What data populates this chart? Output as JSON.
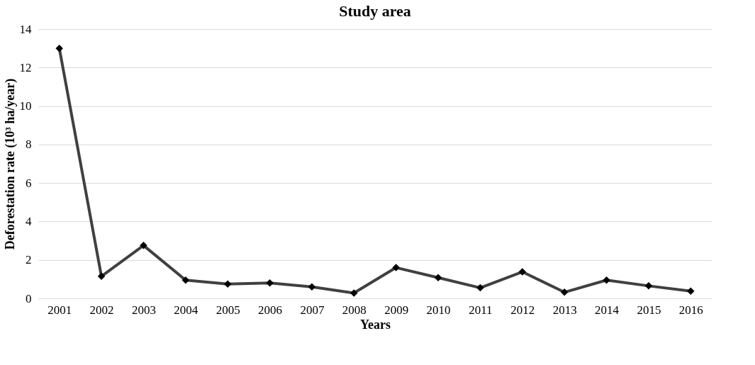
{
  "chart_data": {
    "type": "line",
    "title": "Study area",
    "xlabel": "Years",
    "ylabel": "Deforestation rate (10³ ha/year)",
    "categories": [
      "2001",
      "2002",
      "2003",
      "2004",
      "2005",
      "2006",
      "2007",
      "2008",
      "2009",
      "2010",
      "2011",
      "2012",
      "2013",
      "2014",
      "2015",
      "2016"
    ],
    "series": [
      {
        "color": "#404040",
        "values": [
          13.0,
          1.15,
          2.75,
          0.95,
          0.75,
          0.8,
          0.6,
          0.28,
          1.6,
          1.08,
          0.55,
          1.38,
          0.32,
          0.95,
          0.65,
          0.38
        ]
      }
    ],
    "ylim": [
      0,
      14
    ],
    "yticks": [
      0,
      2,
      4,
      6,
      8,
      10,
      12,
      14
    ],
    "grid": "y",
    "marker": "diamond",
    "line_style": "solid"
  }
}
